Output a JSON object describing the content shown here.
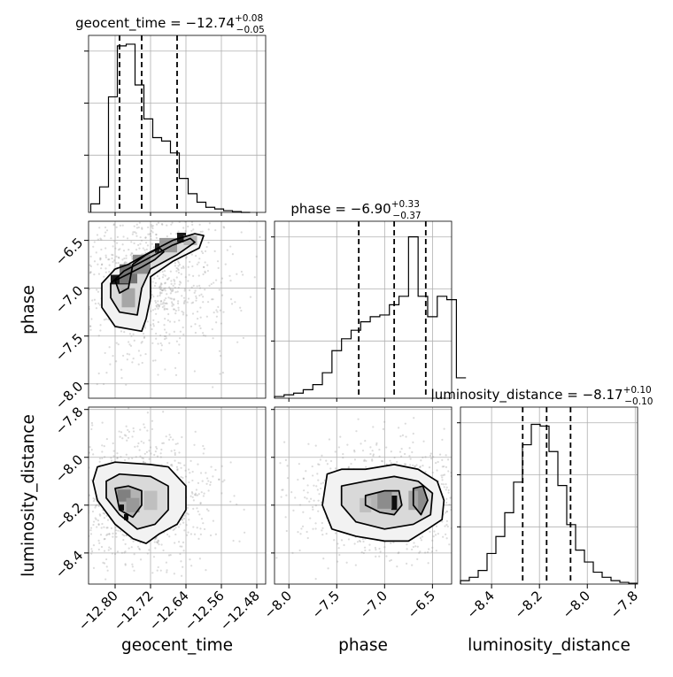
{
  "chart_data": {
    "type": "corner",
    "parameters": [
      "geocent_time",
      "phase",
      "luminosity_distance"
    ],
    "grid": true,
    "panel_titles": [
      {
        "prefix": "geocent_time = −12.74",
        "plus": "+0.08",
        "minus": "−0.05"
      },
      {
        "prefix": "phase = −6.90",
        "plus": "+0.33",
        "minus": "−0.37"
      },
      {
        "prefix": "luminosity_distance = −8.17",
        "plus": "+0.10",
        "minus": "−0.10"
      }
    ],
    "axis_labels": {
      "x": [
        "geocent_time",
        "phase",
        "luminosity_distance"
      ],
      "y": [
        "phase",
        "luminosity_distance"
      ]
    },
    "ticks": {
      "geocent_time": [
        -12.8,
        -12.72,
        -12.64,
        -12.56,
        -12.48
      ],
      "geocent_time_labels": [
        "−12.80",
        "−12.72",
        "−12.64",
        "−12.56",
        "−12.48"
      ],
      "phase": [
        -8.0,
        -7.5,
        -7.0,
        -6.5
      ],
      "phase_labels": [
        "−8.0",
        "−7.5",
        "−7.0",
        "−6.5"
      ],
      "luminosity_distance": [
        -8.4,
        -8.2,
        -8.0,
        -7.8
      ],
      "luminosity_distance_labels": [
        "−8.4",
        "−8.2",
        "−8.0",
        "−7.8"
      ]
    },
    "ranges": {
      "geocent_time": [
        -12.86,
        -12.46
      ],
      "phase": [
        -8.15,
        -6.3
      ],
      "luminosity_distance": [
        -8.53,
        -7.79
      ]
    },
    "quantiles": {
      "geocent_time": [
        -12.79,
        -12.74,
        -12.66
      ],
      "phase": [
        -7.27,
        -6.9,
        -6.57
      ],
      "luminosity_distance": [
        -8.27,
        -8.17,
        -8.07
      ]
    },
    "histograms": {
      "geocent_time": {
        "bin_start": -12.855,
        "bin_width": 0.02,
        "counts": [
          0.05,
          0.15,
          0.68,
          0.98,
          0.99,
          0.75,
          0.55,
          0.44,
          0.42,
          0.35,
          0.2,
          0.11,
          0.06,
          0.03,
          0.02,
          0.01,
          0.005,
          0.0
        ]
      },
      "phase": {
        "bin_start": -8.15,
        "bin_width": 0.1,
        "counts": [
          0.01,
          0.02,
          0.03,
          0.05,
          0.08,
          0.15,
          0.28,
          0.35,
          0.4,
          0.45,
          0.48,
          0.49,
          0.55,
          0.6,
          0.95,
          0.6,
          0.48,
          0.6,
          0.58,
          0.12
        ]
      },
      "luminosity_distance": {
        "bin_start": -8.53,
        "bin_width": 0.037,
        "counts": [
          0.02,
          0.04,
          0.08,
          0.18,
          0.28,
          0.42,
          0.6,
          0.82,
          0.94,
          0.93,
          0.78,
          0.58,
          0.35,
          0.2,
          0.13,
          0.07,
          0.04,
          0.02,
          0.01,
          0.005
        ]
      }
    },
    "contour_panels": [
      {
        "x": "geocent_time",
        "y": "phase",
        "levels": [
          [
            [
              -12.83,
              -6.95
            ],
            [
              -12.8,
              -6.8
            ],
            [
              -12.77,
              -6.75
            ],
            [
              -12.72,
              -6.62
            ],
            [
              -12.67,
              -6.5
            ],
            [
              -12.62,
              -6.43
            ],
            [
              -12.6,
              -6.45
            ],
            [
              -12.61,
              -6.58
            ],
            [
              -12.67,
              -6.72
            ],
            [
              -12.72,
              -6.88
            ],
            [
              -12.72,
              -7.1
            ],
            [
              -12.73,
              -7.32
            ],
            [
              -12.74,
              -7.45
            ],
            [
              -12.8,
              -7.4
            ],
            [
              -12.83,
              -7.2
            ]
          ],
          [
            [
              -12.81,
              -6.95
            ],
            [
              -12.78,
              -6.82
            ],
            [
              -12.73,
              -6.7
            ],
            [
              -12.67,
              -6.55
            ],
            [
              -12.63,
              -6.48
            ],
            [
              -12.62,
              -6.52
            ],
            [
              -12.66,
              -6.65
            ],
            [
              -12.72,
              -6.8
            ],
            [
              -12.74,
              -7.0
            ],
            [
              -12.75,
              -7.28
            ],
            [
              -12.79,
              -7.25
            ],
            [
              -12.81,
              -7.1
            ]
          ],
          [
            [
              -12.8,
              -6.92
            ],
            [
              -12.77,
              -6.85
            ],
            [
              -12.74,
              -6.78
            ],
            [
              -12.71,
              -6.7
            ],
            [
              -12.69,
              -6.62
            ],
            [
              -12.7,
              -6.58
            ],
            [
              -12.73,
              -6.65
            ],
            [
              -12.76,
              -6.75
            ],
            [
              -12.77,
              -7.0
            ],
            [
              -12.79,
              -7.05
            ]
          ]
        ],
        "density": [
          {
            "x": -12.79,
            "y": -6.91,
            "w": 0.04,
            "h": 0.1,
            "d": 0.9
          },
          {
            "x": -12.7,
            "y": -6.58,
            "w": 0.02,
            "h": 0.1,
            "d": 0.85
          },
          {
            "x": -12.65,
            "y": -6.47,
            "w": 0.02,
            "h": 0.1,
            "d": 0.9
          },
          {
            "x": -12.77,
            "y": -6.85,
            "w": 0.04,
            "h": 0.2,
            "d": 0.55
          },
          {
            "x": -12.74,
            "y": -6.75,
            "w": 0.04,
            "h": 0.2,
            "d": 0.45
          },
          {
            "x": -12.77,
            "y": -7.1,
            "w": 0.03,
            "h": 0.2,
            "d": 0.35
          },
          {
            "x": -12.68,
            "y": -6.55,
            "w": 0.04,
            "h": 0.15,
            "d": 0.4
          },
          {
            "x": -12.63,
            "y": -6.5,
            "w": 0.03,
            "h": 0.1,
            "d": 0.3
          }
        ]
      },
      {
        "x": "geocent_time",
        "y": "luminosity_distance",
        "levels": [
          [
            [
              -12.85,
              -8.1
            ],
            [
              -12.84,
              -8.04
            ],
            [
              -12.8,
              -8.02
            ],
            [
              -12.72,
              -8.03
            ],
            [
              -12.68,
              -8.04
            ],
            [
              -12.64,
              -8.12
            ],
            [
              -12.64,
              -8.22
            ],
            [
              -12.66,
              -8.28
            ],
            [
              -12.7,
              -8.32
            ],
            [
              -12.73,
              -8.36
            ],
            [
              -12.76,
              -8.34
            ],
            [
              -12.8,
              -8.28
            ],
            [
              -12.84,
              -8.18
            ]
          ],
          [
            [
              -12.82,
              -8.1
            ],
            [
              -12.79,
              -8.07
            ],
            [
              -12.72,
              -8.08
            ],
            [
              -12.68,
              -8.12
            ],
            [
              -12.68,
              -8.22
            ],
            [
              -12.71,
              -8.28
            ],
            [
              -12.75,
              -8.3
            ],
            [
              -12.79,
              -8.24
            ],
            [
              -12.82,
              -8.17
            ]
          ],
          [
            [
              -12.8,
              -8.13
            ],
            [
              -12.77,
              -8.12
            ],
            [
              -12.74,
              -8.14
            ],
            [
              -12.74,
              -8.2
            ],
            [
              -12.76,
              -8.25
            ],
            [
              -12.79,
              -8.22
            ]
          ]
        ],
        "density": [
          {
            "x": -12.785,
            "y": -8.21,
            "w": 0.01,
            "h": 0.025,
            "d": 0.95
          },
          {
            "x": -12.775,
            "y": -8.25,
            "w": 0.01,
            "h": 0.025,
            "d": 0.95
          },
          {
            "x": -12.78,
            "y": -8.16,
            "w": 0.03,
            "h": 0.05,
            "d": 0.5
          },
          {
            "x": -12.76,
            "y": -8.2,
            "w": 0.03,
            "h": 0.06,
            "d": 0.4
          },
          {
            "x": -12.72,
            "y": -8.18,
            "w": 0.03,
            "h": 0.08,
            "d": 0.25
          }
        ]
      },
      {
        "x": "phase",
        "y": "luminosity_distance",
        "levels": [
          [
            [
              -7.6,
              -8.07
            ],
            [
              -7.45,
              -8.05
            ],
            [
              -7.2,
              -8.05
            ],
            [
              -6.9,
              -8.03
            ],
            [
              -6.65,
              -8.05
            ],
            [
              -6.45,
              -8.1
            ],
            [
              -6.38,
              -8.18
            ],
            [
              -6.4,
              -8.26
            ],
            [
              -6.55,
              -8.3
            ],
            [
              -6.75,
              -8.35
            ],
            [
              -7.0,
              -8.35
            ],
            [
              -7.3,
              -8.33
            ],
            [
              -7.55,
              -8.3
            ],
            [
              -7.65,
              -8.2
            ]
          ],
          [
            [
              -7.45,
              -8.12
            ],
            [
              -7.2,
              -8.1
            ],
            [
              -6.9,
              -8.08
            ],
            [
              -6.65,
              -8.1
            ],
            [
              -6.5,
              -8.15
            ],
            [
              -6.52,
              -8.24
            ],
            [
              -6.7,
              -8.28
            ],
            [
              -7.0,
              -8.3
            ],
            [
              -7.3,
              -8.27
            ],
            [
              -7.45,
              -8.2
            ]
          ],
          [
            [
              -7.2,
              -8.16
            ],
            [
              -7.0,
              -8.14
            ],
            [
              -6.85,
              -8.14
            ],
            [
              -6.82,
              -8.2
            ],
            [
              -6.9,
              -8.24
            ],
            [
              -7.05,
              -8.23
            ],
            [
              -7.2,
              -8.2
            ]
          ],
          [
            [
              -6.7,
              -8.13
            ],
            [
              -6.6,
              -8.12
            ],
            [
              -6.55,
              -8.18
            ],
            [
              -6.62,
              -8.24
            ],
            [
              -6.7,
              -8.2
            ]
          ]
        ],
        "density": [
          {
            "x": -6.9,
            "y": -8.19,
            "w": 0.06,
            "h": 0.06,
            "d": 0.95
          },
          {
            "x": -7.0,
            "y": -8.18,
            "w": 0.15,
            "h": 0.07,
            "d": 0.45
          },
          {
            "x": -6.7,
            "y": -8.18,
            "w": 0.1,
            "h": 0.08,
            "d": 0.35
          },
          {
            "x": -7.2,
            "y": -8.2,
            "w": 0.12,
            "h": 0.06,
            "d": 0.25
          }
        ]
      }
    ]
  }
}
